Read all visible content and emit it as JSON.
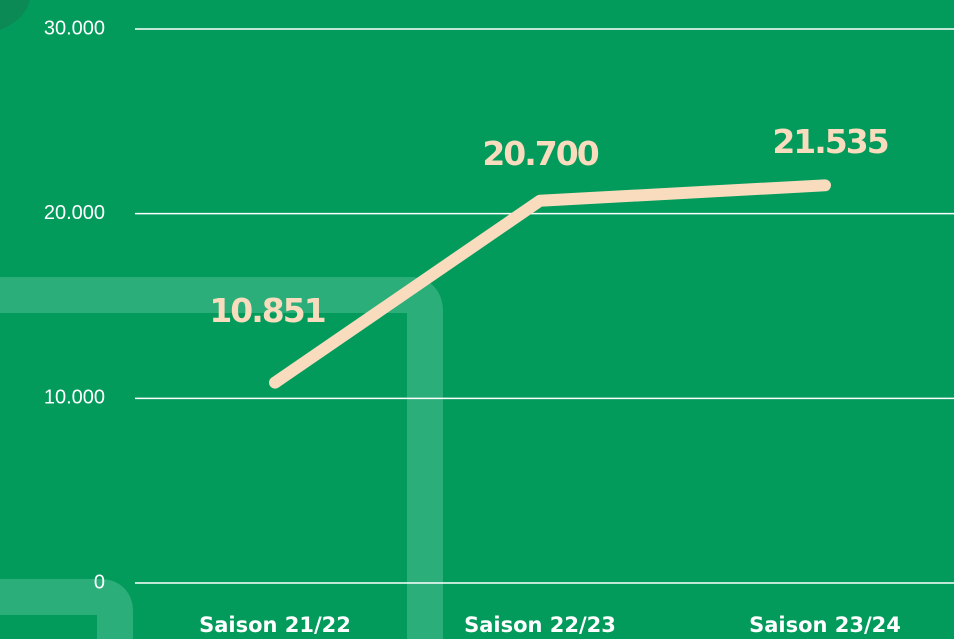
{
  "chart_data": {
    "type": "line",
    "categories": [
      "Saison 21/22",
      "Saison 22/23",
      "Saison 23/24"
    ],
    "series": [
      {
        "color": "#f8dcbd",
        "values": [
          10851,
          20700,
          21535
        ],
        "value_labels": [
          "10.851",
          "20.700",
          "21.535"
        ]
      }
    ],
    "ylim": [
      0,
      30000
    ],
    "yticks": [
      0,
      {
        "value": 10000,
        "label": "10.000"
      },
      {
        "value": 20000,
        "label": "20.000"
      },
      {
        "value": 30000,
        "label": "30.000"
      }
    ],
    "grid": true
  }
}
